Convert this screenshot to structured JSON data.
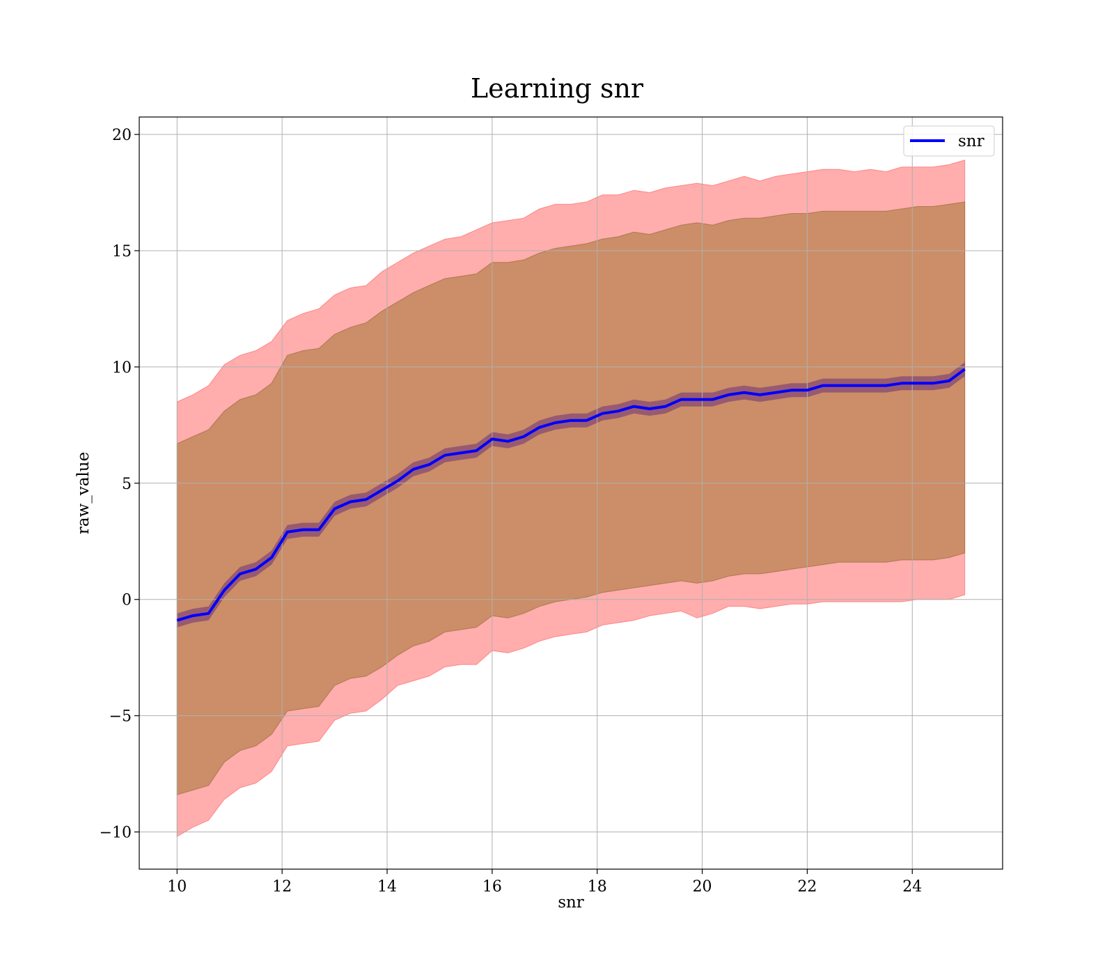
{
  "chart_data": {
    "type": "line",
    "title": "Learning snr",
    "xlabel": "snr",
    "ylabel": "raw_value",
    "xlim": [
      9.28,
      25.72
    ],
    "ylim": [
      -11.6,
      20.75
    ],
    "x_ticks": [
      10,
      12,
      14,
      16,
      18,
      20,
      22,
      24
    ],
    "y_ticks": [
      -10,
      -5,
      0,
      5,
      10,
      15,
      20
    ],
    "x_tick_labels": [
      "10",
      "12",
      "14",
      "16",
      "18",
      "20",
      "22",
      "24"
    ],
    "y_tick_labels": [
      "−10",
      "−5",
      "0",
      "5",
      "10",
      "15",
      "20"
    ],
    "grid": true,
    "legend_position": "top-right",
    "series": [
      {
        "name": "snr",
        "color": "#0000ff",
        "x": [
          10.0,
          10.3,
          10.6,
          10.9,
          11.2,
          11.5,
          11.8,
          12.1,
          12.4,
          12.7,
          13.0,
          13.3,
          13.6,
          13.9,
          14.2,
          14.5,
          14.8,
          15.1,
          15.4,
          15.7,
          16.0,
          16.3,
          16.6,
          16.9,
          17.2,
          17.5,
          17.8,
          18.1,
          18.4,
          18.7,
          19.0,
          19.3,
          19.6,
          19.9,
          20.2,
          20.5,
          20.8,
          21.1,
          21.4,
          21.7,
          22.0,
          22.3,
          22.6,
          22.9,
          23.2,
          23.5,
          23.8,
          24.1,
          24.4,
          24.7,
          25.0
        ],
        "y": [
          -0.9,
          -0.7,
          -0.6,
          0.4,
          1.1,
          1.3,
          1.8,
          2.9,
          3.0,
          3.0,
          3.9,
          4.2,
          4.3,
          4.7,
          5.1,
          5.6,
          5.8,
          6.2,
          6.3,
          6.4,
          6.9,
          6.8,
          7.0,
          7.4,
          7.6,
          7.7,
          7.7,
          8.0,
          8.1,
          8.3,
          8.2,
          8.3,
          8.6,
          8.6,
          8.6,
          8.8,
          8.9,
          8.8,
          8.9,
          9.0,
          9.0,
          9.2,
          9.2,
          9.2,
          9.2,
          9.2,
          9.3,
          9.3,
          9.3,
          9.4,
          9.9
        ],
        "error_band": {
          "lower": [
            -1.2,
            -1.0,
            -0.9,
            0.1,
            0.8,
            1.0,
            1.5,
            2.6,
            2.7,
            2.7,
            3.6,
            3.9,
            4.0,
            4.4,
            4.8,
            5.3,
            5.5,
            5.9,
            6.0,
            6.1,
            6.6,
            6.5,
            6.7,
            7.1,
            7.3,
            7.4,
            7.4,
            7.7,
            7.8,
            8.0,
            7.9,
            8.0,
            8.3,
            8.3,
            8.3,
            8.5,
            8.6,
            8.5,
            8.6,
            8.7,
            8.7,
            8.9,
            8.9,
            8.9,
            8.9,
            8.9,
            9.0,
            9.0,
            9.0,
            9.1,
            9.6
          ],
          "upper": [
            -0.6,
            -0.4,
            -0.3,
            0.7,
            1.4,
            1.6,
            2.1,
            3.2,
            3.3,
            3.3,
            4.2,
            4.5,
            4.6,
            5.0,
            5.4,
            5.9,
            6.1,
            6.5,
            6.6,
            6.7,
            7.2,
            7.1,
            7.3,
            7.7,
            7.9,
            8.0,
            8.0,
            8.3,
            8.4,
            8.6,
            8.5,
            8.6,
            8.9,
            8.9,
            8.9,
            9.1,
            9.2,
            9.1,
            9.2,
            9.3,
            9.3,
            9.5,
            9.5,
            9.5,
            9.5,
            9.5,
            9.6,
            9.6,
            9.6,
            9.7,
            10.2
          ],
          "color": "#800080"
        }
      },
      {
        "name": "",
        "type": "area",
        "color": "#ff0000",
        "x": [
          10.0,
          10.3,
          10.6,
          10.9,
          11.2,
          11.5,
          11.8,
          12.1,
          12.4,
          12.7,
          13.0,
          13.3,
          13.6,
          13.9,
          14.2,
          14.5,
          14.8,
          15.1,
          15.4,
          15.7,
          16.0,
          16.3,
          16.6,
          16.9,
          17.2,
          17.5,
          17.8,
          18.1,
          18.4,
          18.7,
          19.0,
          19.3,
          19.6,
          19.9,
          20.2,
          20.5,
          20.8,
          21.1,
          21.4,
          21.7,
          22.0,
          22.3,
          22.6,
          22.9,
          23.2,
          23.5,
          23.8,
          24.1,
          24.4,
          24.7,
          25.0
        ],
        "lower": [
          -10.2,
          -9.8,
          -9.5,
          -8.6,
          -8.1,
          -7.9,
          -7.4,
          -6.3,
          -6.2,
          -6.1,
          -5.2,
          -4.9,
          -4.8,
          -4.3,
          -3.7,
          -3.5,
          -3.3,
          -2.9,
          -2.8,
          -2.8,
          -2.2,
          -2.3,
          -2.1,
          -1.8,
          -1.6,
          -1.5,
          -1.4,
          -1.1,
          -1.0,
          -0.9,
          -0.7,
          -0.6,
          -0.5,
          -0.8,
          -0.6,
          -0.3,
          -0.3,
          -0.4,
          -0.3,
          -0.2,
          -0.2,
          -0.1,
          -0.1,
          -0.1,
          -0.1,
          -0.1,
          -0.1,
          0.0,
          0.0,
          0.0,
          0.2
        ],
        "upper": [
          8.5,
          8.8,
          9.2,
          10.1,
          10.5,
          10.7,
          11.1,
          12.0,
          12.3,
          12.5,
          13.1,
          13.4,
          13.5,
          14.1,
          14.5,
          14.9,
          15.2,
          15.5,
          15.6,
          15.9,
          16.2,
          16.3,
          16.4,
          16.8,
          17.0,
          17.0,
          17.1,
          17.4,
          17.4,
          17.6,
          17.5,
          17.7,
          17.8,
          17.9,
          17.8,
          18.0,
          18.2,
          18.0,
          18.2,
          18.3,
          18.4,
          18.5,
          18.5,
          18.4,
          18.5,
          18.4,
          18.6,
          18.6,
          18.6,
          18.7,
          18.9
        ]
      },
      {
        "name": "",
        "type": "area",
        "color": "#8b6914",
        "x": [
          10.0,
          10.3,
          10.6,
          10.9,
          11.2,
          11.5,
          11.8,
          12.1,
          12.4,
          12.7,
          13.0,
          13.3,
          13.6,
          13.9,
          14.2,
          14.5,
          14.8,
          15.1,
          15.4,
          15.7,
          16.0,
          16.3,
          16.6,
          16.9,
          17.2,
          17.5,
          17.8,
          18.1,
          18.4,
          18.7,
          19.0,
          19.3,
          19.6,
          19.9,
          20.2,
          20.5,
          20.8,
          21.1,
          21.4,
          21.7,
          22.0,
          22.3,
          22.6,
          22.9,
          23.2,
          23.5,
          23.8,
          24.1,
          24.4,
          24.7,
          25.0
        ],
        "lower": [
          -8.4,
          -8.2,
          -8.0,
          -7.0,
          -6.5,
          -6.3,
          -5.8,
          -4.8,
          -4.7,
          -4.6,
          -3.7,
          -3.4,
          -3.3,
          -2.9,
          -2.4,
          -2.0,
          -1.8,
          -1.4,
          -1.3,
          -1.2,
          -0.7,
          -0.8,
          -0.6,
          -0.3,
          -0.1,
          0.0,
          0.1,
          0.3,
          0.4,
          0.5,
          0.6,
          0.7,
          0.8,
          0.7,
          0.8,
          1.0,
          1.1,
          1.1,
          1.2,
          1.3,
          1.4,
          1.5,
          1.6,
          1.6,
          1.6,
          1.6,
          1.7,
          1.7,
          1.7,
          1.8,
          2.0
        ],
        "upper": [
          6.7,
          7.0,
          7.3,
          8.1,
          8.6,
          8.8,
          9.3,
          10.5,
          10.7,
          10.8,
          11.4,
          11.7,
          11.9,
          12.4,
          12.8,
          13.2,
          13.5,
          13.8,
          13.9,
          14.0,
          14.5,
          14.5,
          14.6,
          14.9,
          15.1,
          15.2,
          15.3,
          15.5,
          15.6,
          15.8,
          15.7,
          15.9,
          16.1,
          16.2,
          16.1,
          16.3,
          16.4,
          16.4,
          16.5,
          16.6,
          16.6,
          16.7,
          16.7,
          16.7,
          16.7,
          16.7,
          16.8,
          16.9,
          16.9,
          17.0,
          17.1
        ]
      }
    ]
  }
}
